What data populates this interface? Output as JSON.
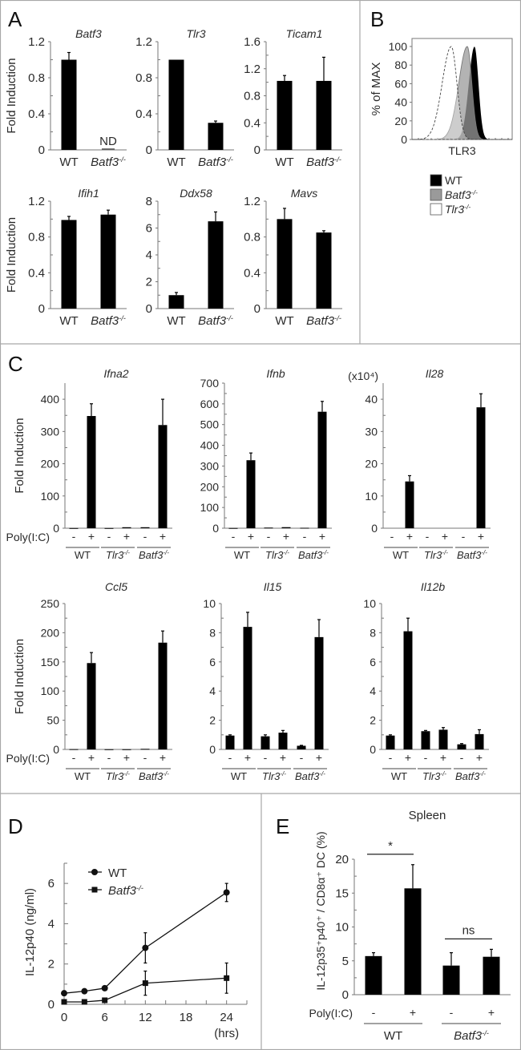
{
  "panel_labels": {
    "A": "A",
    "B": "B",
    "C": "C",
    "D": "D",
    "E": "E"
  },
  "chart_data": [
    {
      "panel": "A",
      "type": "bar",
      "title": "Batf3",
      "ylabel": "Fold Induction",
      "categories": [
        "WT",
        "Batf3-/-"
      ],
      "values": [
        1.0,
        0
      ],
      "errors": [
        0.08,
        0
      ],
      "ylim": [
        0,
        1.2
      ],
      "yticks": [
        0,
        0.4,
        0.8,
        1.2
      ],
      "annotations": [
        {
          "category_index": 1,
          "text": "ND"
        }
      ]
    },
    {
      "panel": "A",
      "type": "bar",
      "title": "Tlr3",
      "categories": [
        "WT",
        "Batf3-/-"
      ],
      "values": [
        1.0,
        0.3
      ],
      "errors": [
        0,
        0.02
      ],
      "ylim": [
        0,
        1.2
      ],
      "yticks": [
        0,
        0.4,
        0.8,
        1.2
      ]
    },
    {
      "panel": "A",
      "type": "bar",
      "title": "Ticam1",
      "categories": [
        "WT",
        "Batf3-/-"
      ],
      "values": [
        1.02,
        1.02
      ],
      "errors": [
        0.08,
        0.35
      ],
      "ylim": [
        0,
        1.6
      ],
      "yticks": [
        0,
        0.4,
        0.8,
        1.2,
        1.6
      ]
    },
    {
      "panel": "A",
      "type": "bar",
      "title": "Ifih1",
      "ylabel": "Fold Induction",
      "categories": [
        "WT",
        "Batf3-/-"
      ],
      "values": [
        0.99,
        1.05
      ],
      "errors": [
        0.04,
        0.05
      ],
      "ylim": [
        0,
        1.2
      ],
      "yticks": [
        0,
        0.4,
        0.8,
        1.2
      ]
    },
    {
      "panel": "A",
      "type": "bar",
      "title": "Ddx58",
      "categories": [
        "WT",
        "Batf3-/-"
      ],
      "values": [
        1.0,
        6.5
      ],
      "errors": [
        0.2,
        0.7
      ],
      "ylim": [
        0,
        8
      ],
      "yticks": [
        0,
        2,
        4,
        6,
        8
      ]
    },
    {
      "panel": "A",
      "type": "bar",
      "title": "Mavs",
      "categories": [
        "WT",
        "Batf3-/-"
      ],
      "values": [
        1.0,
        0.85
      ],
      "errors": [
        0.12,
        0.02
      ],
      "ylim": [
        0,
        1.2
      ],
      "yticks": [
        0,
        0.4,
        0.8,
        1.2
      ]
    },
    {
      "panel": "B",
      "type": "histogram",
      "ylabel": "% of MAX",
      "xlabel": "TLR3",
      "ylim": [
        0,
        100
      ],
      "yticks": [
        0,
        20,
        40,
        60,
        80,
        100
      ],
      "legend": "below",
      "series": [
        {
          "name": "WT",
          "color": "#000000"
        },
        {
          "name": "Batf3-/-",
          "color": "#9a9a9a"
        },
        {
          "name": "Tlr3-/-",
          "color": "#ffffff"
        }
      ]
    },
    {
      "panel": "C",
      "type": "bar",
      "title": "Ifna2",
      "ylabel": "Fold Induction",
      "treatment_label": "Poly(I:C)",
      "categories": [
        "-",
        "+",
        "-",
        "+",
        "-",
        "+"
      ],
      "groups": [
        "WT",
        "Tlr3-/-",
        "Batf3-/-"
      ],
      "values": [
        0.5,
        348,
        0.5,
        3,
        3,
        320
      ],
      "errors": [
        0,
        38,
        0,
        0,
        0,
        80
      ],
      "ylim": [
        0,
        450
      ],
      "yticks": [
        0,
        100,
        200,
        300,
        400
      ]
    },
    {
      "panel": "C",
      "type": "bar",
      "title": "Ifnb",
      "categories": [
        "-",
        "+",
        "-",
        "+",
        "-",
        "+"
      ],
      "groups": [
        "WT",
        "Tlr3-/-",
        "Batf3-/-"
      ],
      "values": [
        1,
        328,
        3,
        5,
        2,
        562
      ],
      "errors": [
        0,
        35,
        0,
        0,
        0,
        50
      ],
      "ylim": [
        0,
        700
      ],
      "yticks": [
        0,
        100,
        200,
        300,
        400,
        500,
        600,
        700
      ]
    },
    {
      "panel": "C",
      "type": "bar",
      "title": "Il28",
      "y_multiplier": "(x10⁴)",
      "categories": [
        "-",
        "+",
        "-",
        "+",
        "-",
        "+"
      ],
      "groups": [
        "WT",
        "Tlr3-/-",
        "Batf3-/-"
      ],
      "values": [
        0,
        14.5,
        0,
        0,
        0,
        37.5
      ],
      "errors": [
        0,
        1.8,
        0,
        0,
        0,
        4.2
      ],
      "ylim": [
        0,
        45
      ],
      "yticks": [
        0,
        10,
        20,
        30,
        40
      ]
    },
    {
      "panel": "C",
      "type": "bar",
      "title": "Ccl5",
      "ylabel": "Fold Induction",
      "treatment_label": "Poly(I:C)",
      "categories": [
        "-",
        "+",
        "-",
        "+",
        "-",
        "+"
      ],
      "groups": [
        "WT",
        "Tlr3-/-",
        "Batf3-/-"
      ],
      "values": [
        0.5,
        148,
        0.3,
        0.3,
        1,
        183
      ],
      "errors": [
        0,
        18,
        0,
        0,
        0,
        20
      ],
      "ylim": [
        0,
        250
      ],
      "yticks": [
        0,
        50,
        100,
        150,
        200,
        250
      ]
    },
    {
      "panel": "C",
      "type": "bar",
      "title": "Il15",
      "categories": [
        "-",
        "+",
        "-",
        "+",
        "-",
        "+"
      ],
      "groups": [
        "WT",
        "Tlr3-/-",
        "Batf3-/-"
      ],
      "values": [
        0.95,
        8.4,
        0.9,
        1.15,
        0.25,
        7.7
      ],
      "errors": [
        0.05,
        1.0,
        0.1,
        0.15,
        0.03,
        1.2
      ],
      "ylim": [
        0,
        10
      ],
      "yticks": [
        0,
        2,
        4,
        6,
        8,
        10
      ]
    },
    {
      "panel": "C",
      "type": "bar",
      "title": "Il12b",
      "categories": [
        "-",
        "+",
        "-",
        "+",
        "-",
        "+"
      ],
      "groups": [
        "WT",
        "Tlr3-/-",
        "Batf3-/-"
      ],
      "values": [
        0.95,
        8.1,
        1.25,
        1.35,
        0.35,
        1.05
      ],
      "errors": [
        0.05,
        0.9,
        0.05,
        0.15,
        0.05,
        0.3
      ],
      "ylim": [
        0,
        10
      ],
      "yticks": [
        0,
        2,
        4,
        6,
        8,
        10
      ]
    },
    {
      "panel": "D",
      "type": "line",
      "xlabel": "(hrs)",
      "ylabel": "IL-12p40 (ng/ml)",
      "x": [
        0,
        3,
        6,
        12,
        24
      ],
      "xlim": [
        0,
        27
      ],
      "xticks": [
        0,
        6,
        12,
        18,
        24
      ],
      "ylim": [
        0,
        7
      ],
      "yticks": [
        0,
        2,
        4,
        6
      ],
      "legend": "top-left",
      "series": [
        {
          "name": "WT",
          "marker": "circle",
          "values": [
            0.55,
            0.65,
            0.8,
            2.8,
            5.55
          ],
          "errors": [
            0.05,
            0.05,
            0.08,
            0.75,
            0.45
          ]
        },
        {
          "name": "Batf3-/-",
          "marker": "square",
          "values": [
            0.12,
            0.12,
            0.2,
            1.05,
            1.3
          ],
          "errors": [
            0.05,
            0.05,
            0.1,
            0.6,
            0.75
          ]
        }
      ]
    },
    {
      "panel": "E",
      "type": "bar",
      "title": "Spleen",
      "ylabel": "IL-12p35⁺p40⁺ / CD8α⁺ DC (%)",
      "treatment_label": "Poly(I:C)",
      "categories": [
        "-",
        "+",
        "-",
        "+"
      ],
      "groups": [
        "WT",
        "Batf3-/-"
      ],
      "values": [
        5.7,
        15.7,
        4.3,
        5.6
      ],
      "errors": [
        0.5,
        3.5,
        1.9,
        1.1
      ],
      "ylim": [
        0,
        20
      ],
      "yticks": [
        0,
        5,
        10,
        15,
        20
      ],
      "significance": [
        {
          "between": [
            0,
            1
          ],
          "text": "*"
        },
        {
          "between": [
            2,
            3
          ],
          "text": "ns"
        }
      ]
    }
  ]
}
